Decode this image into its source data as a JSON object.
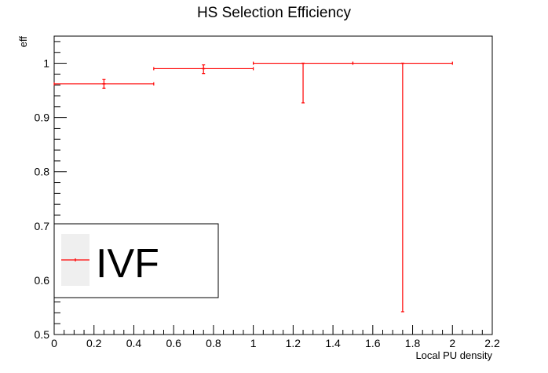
{
  "chart_data": {
    "type": "scatter",
    "title": "HS Selection Efficiency",
    "xlabel": "Local PU density",
    "ylabel": "eff",
    "xlim": [
      0,
      2.2
    ],
    "ylim": [
      0.5,
      1.05
    ],
    "x_ticks": [
      0,
      0.2,
      0.4,
      0.6,
      0.8,
      1,
      1.2,
      1.4,
      1.6,
      1.8,
      2,
      2.2
    ],
    "y_ticks": [
      0.5,
      0.6,
      0.7,
      0.8,
      0.9,
      1
    ],
    "grid": false,
    "legend": {
      "placement": "bottom-left",
      "entries": [
        "IVF"
      ]
    },
    "series": [
      {
        "name": "IVF",
        "color": "#ff0000",
        "points": [
          {
            "x": 0.25,
            "x_err": 0.25,
            "y": 0.962,
            "y_err_low": 0.008,
            "y_err_high": 0.008
          },
          {
            "x": 0.75,
            "x_err": 0.25,
            "y": 0.99,
            "y_err_low": 0.009,
            "y_err_high": 0.007
          },
          {
            "x": 1.25,
            "x_err": 0.25,
            "y": 1.0,
            "y_err_low": 0.073,
            "y_err_high": 0.0
          },
          {
            "x": 1.75,
            "x_err": 0.25,
            "y": 1.0,
            "y_err_low": 0.458,
            "y_err_high": 0.0
          }
        ]
      }
    ]
  }
}
